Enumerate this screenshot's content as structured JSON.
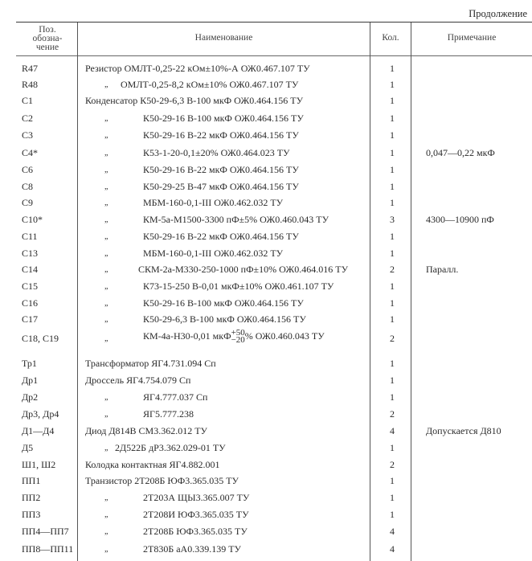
{
  "continuation": "Продолжение",
  "headers": {
    "position": [
      "Поз.",
      "обозна-",
      "чение"
    ],
    "name": "Наименование",
    "qty": "Кол.",
    "note": "Примечание"
  },
  "ditto": "„",
  "rows": [
    {
      "pos": "R47",
      "name": "Резистор  ОМЛТ-0,25-22  кОм±10%-А  ОЖ0.467.107  ТУ",
      "qty": "1",
      "note": "",
      "ditto": false
    },
    {
      "pos": "R48",
      "name": "ОМЛТ-0,25-8,2  кОм±10%  ОЖ0.467.107  ТУ",
      "qty": "1",
      "note": "",
      "ditto": true
    },
    {
      "pos": "C1",
      "name": "Конденсатор  К50-29-6,3 В-100  мкФ  ОЖ0.464.156  ТУ",
      "qty": "1",
      "note": "",
      "ditto": false
    },
    {
      "pos": "C2",
      "name": "К50-29-16 В-100  мкФ  ОЖ0.464.156  ТУ",
      "qty": "1",
      "note": "",
      "ditto": true
    },
    {
      "pos": "C3",
      "name": "К50-29-16 В-22  мкФ  ОЖ0.464.156  ТУ",
      "qty": "1",
      "note": "",
      "ditto": true
    },
    {
      "pos": "C4*",
      "name": "К53-1-20-0,1±20%  ОЖ0.464.023  ТУ",
      "qty": "1",
      "note": "0,047—0,22  мкФ",
      "ditto": true
    },
    {
      "pos": "C6",
      "name": "К50-29-16 В-22  мкФ  ОЖ0.464.156  ТУ",
      "qty": "1",
      "note": "",
      "ditto": true
    },
    {
      "pos": "C8",
      "name": "К50-29-25 В-47  мкФ  ОЖ0.464.156  ТУ",
      "qty": "1",
      "note": "",
      "ditto": true
    },
    {
      "pos": "C9",
      "name": "МБМ-160-0,1-III  ОЖ0.462.032  ТУ",
      "qty": "1",
      "note": "",
      "ditto": true
    },
    {
      "pos": "C10*",
      "name": "КМ-5а-М1500-3300  пФ±5%  ОЖ0.460.043  ТУ",
      "qty": "3",
      "note": "4300—10900 пФ",
      "ditto": true
    },
    {
      "pos": "C11",
      "name": "К50-29-16 В-22  мкФ  ОЖ0.464.156  ТУ",
      "qty": "1",
      "note": "",
      "ditto": true
    },
    {
      "pos": "C13",
      "name": "МБМ-160-0,1-III  ОЖ0.462.032  ТУ",
      "qty": "1",
      "note": "",
      "ditto": true
    },
    {
      "pos": "C14",
      "name": "СКМ-2а-М330-250-1000 пФ±10%  ОЖ0.464.016 ТУ",
      "qty": "2",
      "note": "Паралл.",
      "ditto": true
    },
    {
      "pos": "C15",
      "name": "К73-15-250 В-0,01  мкФ±10%  ОЖ0.461.107  ТУ",
      "qty": "1",
      "note": "",
      "ditto": true
    },
    {
      "pos": "C16",
      "name": "К50-29-16 В-100  мкФ  ОЖ0.464.156  ТУ",
      "qty": "1",
      "note": "",
      "ditto": true
    },
    {
      "pos": "C17",
      "name": "К50-29-6,3 В-100  мкФ  ОЖ0.464.156  ТУ",
      "qty": "1",
      "note": "",
      "ditto": true
    },
    {
      "pos": "C18,  C19",
      "name": "КМ-4а-Н30-0,01  мкФ",
      "tol_upper": "+50",
      "tol_lower": "−20",
      "name_suffix": "%  ОЖ0.460.043  ТУ",
      "qty": "2",
      "note": "",
      "ditto": true
    },
    {
      "pos": "Тр1",
      "name": "Трансформатор  ЯГ4.731.094  Сп",
      "qty": "1",
      "note": "",
      "ditto": false
    },
    {
      "pos": "Др1",
      "name": "Дроссель  ЯГ4.754.079  Сп",
      "qty": "1",
      "note": "",
      "ditto": false
    },
    {
      "pos": "Др2",
      "name": "ЯГ4.777.037  Сп",
      "qty": "1",
      "note": "",
      "ditto": true
    },
    {
      "pos": "Др3,  Др4",
      "name": "ЯГ5.777.238",
      "qty": "2",
      "note": "",
      "ditto": true
    },
    {
      "pos": "Д1—Д4",
      "name": "Диод  Д814В  СМ3.362.012  ТУ",
      "qty": "4",
      "note": "Допускается  Д810",
      "ditto": false
    },
    {
      "pos": "Д5",
      "name": "2Д522Б  дР3.362.029-01  ТУ",
      "qty": "1",
      "note": "",
      "ditto": true
    },
    {
      "pos": "Ш1,  Ш2",
      "name": "Колодка  контактная  ЯГ4.882.001",
      "qty": "2",
      "note": "",
      "ditto": false
    },
    {
      "pos": "ПП1",
      "name": "Транзистор  2Т208Б  ЮФ3.365.035  ТУ",
      "qty": "1",
      "note": "",
      "ditto": false
    },
    {
      "pos": "ПП2",
      "name": "2Т203А  ЩЫ3.365.007  ТУ",
      "qty": "1",
      "note": "",
      "ditto": true
    },
    {
      "pos": "ПП3",
      "name": "2Т208И  ЮФ3.365.035  ТУ",
      "qty": "1",
      "note": "",
      "ditto": true
    },
    {
      "pos": "ПП4—ПП7",
      "name": "2Т208Б  ЮФ3.365.035  ТУ",
      "qty": "4",
      "note": "",
      "ditto": true
    },
    {
      "pos": "ПП8—ПП11",
      "name": "2Т830Б  аА0.339.139  ТУ",
      "qty": "4",
      "note": "",
      "ditto": true
    }
  ]
}
